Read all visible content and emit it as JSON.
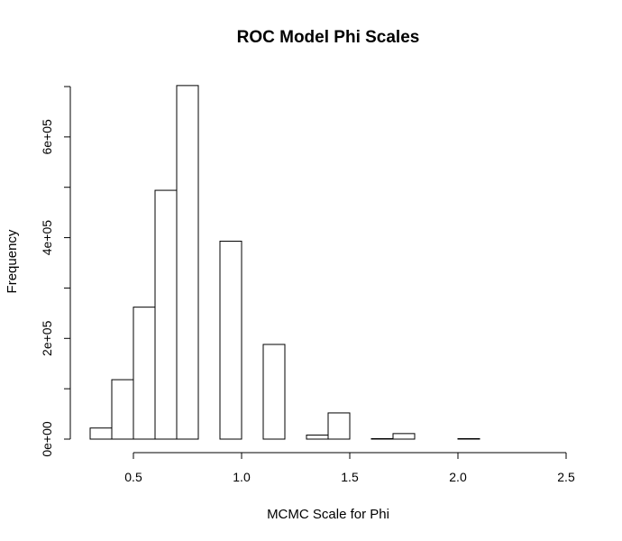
{
  "chart_data": {
    "type": "bar",
    "title": "ROC Model Phi Scales",
    "xlabel": "MCMC Scale for Phi",
    "ylabel": "Frequency",
    "xlim": [
      0.3,
      2.5
    ],
    "ylim": [
      0,
      700000
    ],
    "x_ticks": [
      0.5,
      1.0,
      1.5,
      2.0,
      2.5
    ],
    "x_tick_labels": [
      "0.5",
      "1.0",
      "1.5",
      "2.0",
      "2.5"
    ],
    "y_ticks": [
      0,
      100000,
      200000,
      300000,
      400000,
      500000,
      600000,
      700000
    ],
    "y_tick_labels": [
      "0e+00",
      "",
      "2e+05",
      "",
      "4e+05",
      "",
      "6e+05",
      ""
    ],
    "bin_width": 0.1,
    "bins": [
      {
        "x0": 0.3,
        "x1": 0.4,
        "value": 22000
      },
      {
        "x0": 0.4,
        "x1": 0.5,
        "value": 118000
      },
      {
        "x0": 0.5,
        "x1": 0.6,
        "value": 262000
      },
      {
        "x0": 0.6,
        "x1": 0.7,
        "value": 494000
      },
      {
        "x0": 0.7,
        "x1": 0.8,
        "value": 702000
      },
      {
        "x0": 0.8,
        "x1": 0.9,
        "value": 0
      },
      {
        "x0": 0.9,
        "x1": 1.0,
        "value": 393000
      },
      {
        "x0": 1.0,
        "x1": 1.1,
        "value": 0
      },
      {
        "x0": 1.1,
        "x1": 1.2,
        "value": 188000
      },
      {
        "x0": 1.2,
        "x1": 1.3,
        "value": 0
      },
      {
        "x0": 1.3,
        "x1": 1.4,
        "value": 8000
      },
      {
        "x0": 1.4,
        "x1": 1.5,
        "value": 52000
      },
      {
        "x0": 1.5,
        "x1": 1.6,
        "value": 0
      },
      {
        "x0": 1.6,
        "x1": 1.7,
        "value": 1000
      },
      {
        "x0": 1.7,
        "x1": 1.8,
        "value": 11000
      },
      {
        "x0": 1.8,
        "x1": 1.9,
        "value": 0
      },
      {
        "x0": 1.9,
        "x1": 2.0,
        "value": 0
      },
      {
        "x0": 2.0,
        "x1": 2.1,
        "value": 1000
      },
      {
        "x0": 2.1,
        "x1": 2.2,
        "value": 0
      },
      {
        "x0": 2.2,
        "x1": 2.3,
        "value": 0
      },
      {
        "x0": 2.3,
        "x1": 2.4,
        "value": 0
      },
      {
        "x0": 2.4,
        "x1": 2.5,
        "value": 0
      }
    ]
  }
}
